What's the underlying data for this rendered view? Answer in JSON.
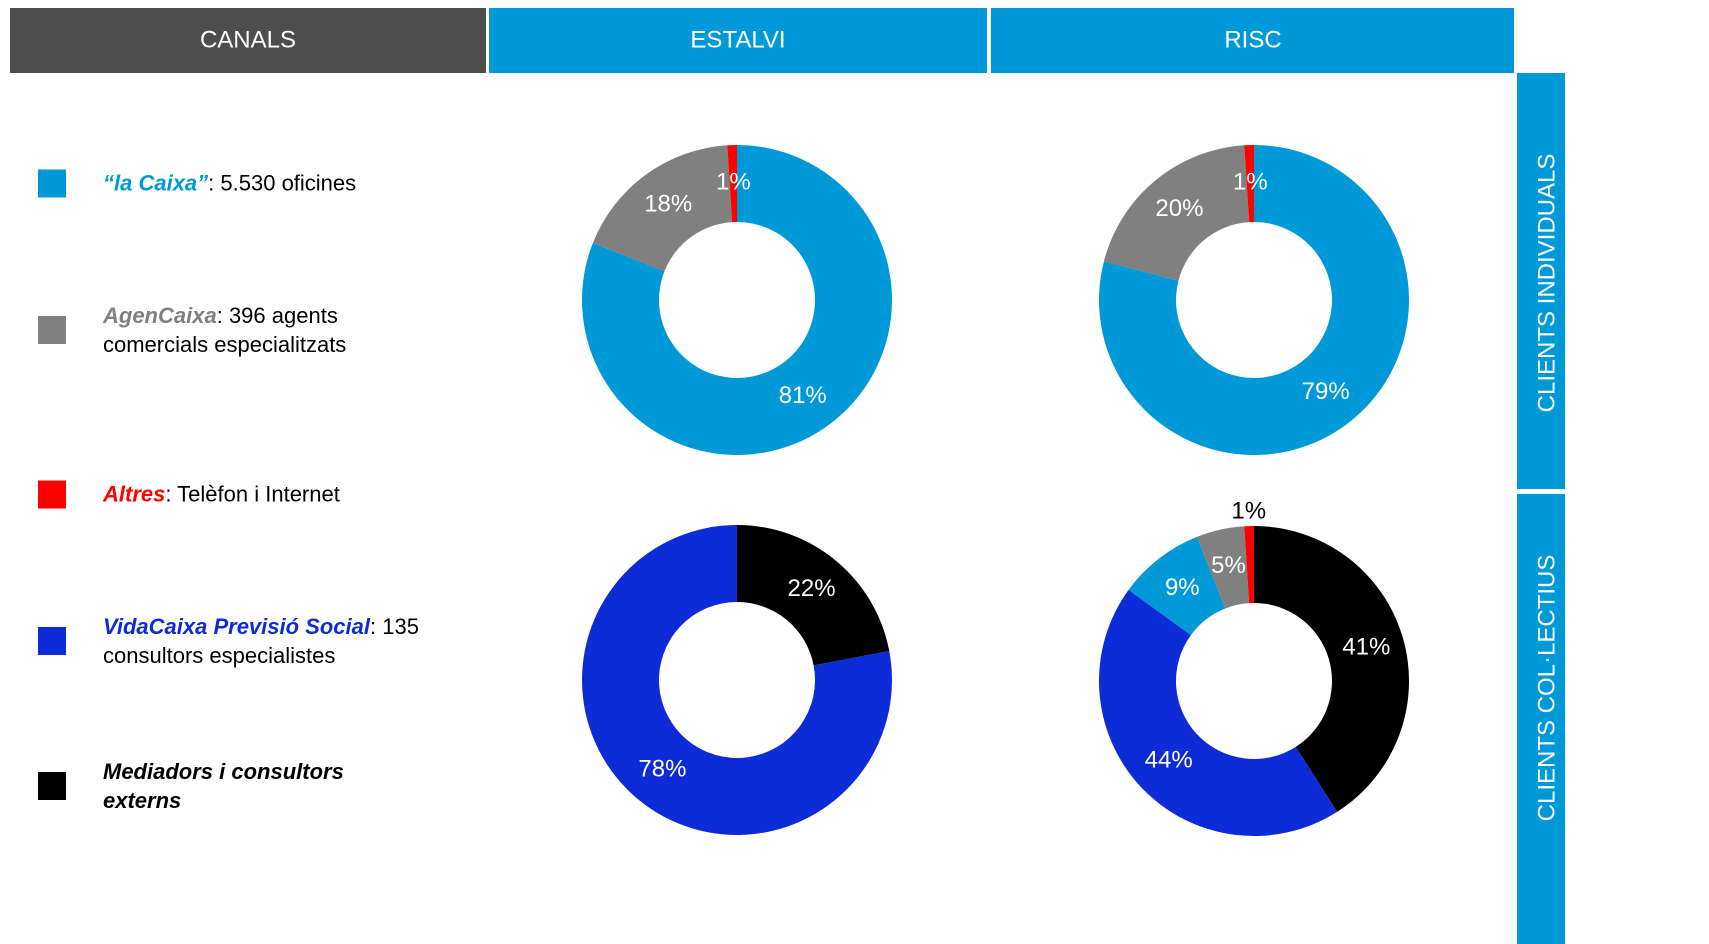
{
  "header": {
    "channels": "CANALS",
    "columns": [
      "ESTALVI",
      "RISC"
    ]
  },
  "rows": [
    "CLIENTS INDIVIDUALS",
    "CLIENTS COL·LECTIUS"
  ],
  "legend": [
    {
      "name": "“la Caixa”",
      "detail": ": 5.530 oficines",
      "color": "#0099d8"
    },
    {
      "name": "AgenCaixa",
      "detail": ": 396 agents comercials especialitzats",
      "color": "#808080"
    },
    {
      "name": "Altres",
      "detail": ": Telèfon i Internet",
      "color": "#ff0000"
    },
    {
      "name": "VidaCaixa Previsió Social",
      "detail": ": 135 consultors especialistes",
      "color": "#0d2bd6"
    },
    {
      "name": "Mediadors i consultors externs",
      "color": "#000000"
    }
  ],
  "chart_data": [
    {
      "type": "pie",
      "values": [
        81,
        18,
        1
      ],
      "value_labels": [
        "81%",
        "18%",
        "1%"
      ],
      "colors": [
        "#0099d8",
        "#808080",
        "#ff0000"
      ]
    },
    {
      "type": "pie",
      "values": [
        79,
        20,
        1
      ],
      "value_labels": [
        "79%",
        "20%",
        "1%"
      ],
      "colors": [
        "#0099d8",
        "#808080",
        "#ff0000"
      ]
    },
    {
      "type": "pie",
      "values": [
        22,
        78
      ],
      "value_labels": [
        "22%",
        "78%"
      ],
      "colors": [
        "#000000",
        "#0d2bd6"
      ]
    },
    {
      "type": "pie",
      "values": [
        41,
        44,
        9,
        5,
        1
      ],
      "value_labels": [
        "41%",
        "44%",
        "9%",
        "5%",
        "1%"
      ],
      "colors": [
        "#000000",
        "#0d2bd6",
        "#0099d8",
        "#808080",
        "#ff0000"
      ]
    }
  ]
}
